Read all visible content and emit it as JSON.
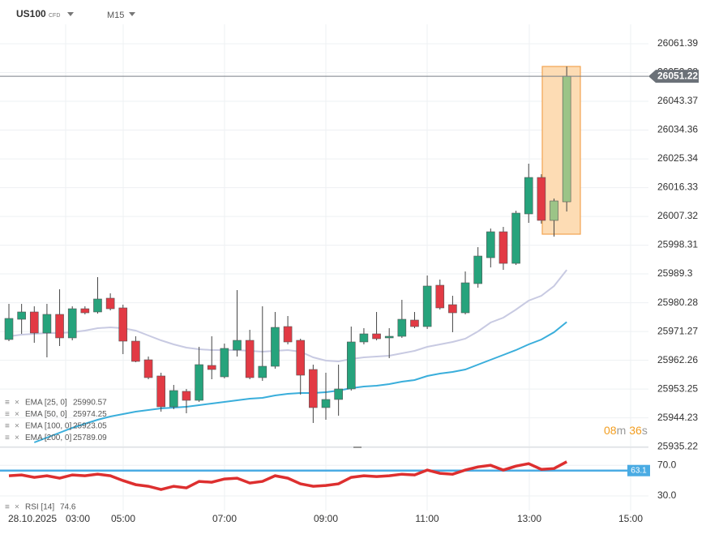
{
  "chart_data": {
    "type": "candlestick",
    "symbol": "US100",
    "instrument_type": "CFD",
    "timeframe": "M15",
    "open": [
      25968.76,
      25975.1,
      25977.39,
      25970.79,
      25976.63,
      25969.27,
      25978.4,
      25977.39,
      25981.7,
      25978.66,
      25968.25,
      25962.41,
      25957.34,
      25947.69,
      25952.52,
      25949.72,
      25960.64,
      25957.08,
      25965.46,
      25968.5,
      25956.83,
      25960.38,
      25972.82,
      25968.5,
      25959.37,
      25947.44,
      25949.98,
      25953.28,
      25968.0,
      25970.53,
      25969.27,
      25969.77,
      25974.85,
      25972.82,
      25985.76,
      25979.67,
      25977.13,
      25986.27,
      25994.39,
      26002.51,
      25992.61,
      26008.1,
      26019.52,
      26006.07,
      26011.9
    ],
    "high": [
      25979.92,
      25979.92,
      25979.16,
      25979.92,
      25984.49,
      25979.16,
      25979.16,
      25988.3,
      25983.22,
      25979.67,
      25969.77,
      25963.43,
      25958.35,
      25954.54,
      25953.28,
      25966.47,
      25969.77,
      25967.49,
      25984.24,
      25971.8,
      25979.16,
      25977.39,
      25976.12,
      25969.01,
      25960.89,
      25958.35,
      25960.89,
      25972.82,
      25972.31,
      25977.39,
      25972.31,
      25981.19,
      25977.39,
      25988.81,
      25987.54,
      25982.46,
      25990.08,
      25997.69,
      26003.53,
      26004.04,
      26009.11,
      26023.83,
      26020.53,
      26012.92,
      26054.29
    ],
    "low": [
      25968.25,
      25970.53,
      25967.74,
      25963.17,
      25966.73,
      25968.5,
      25976.63,
      25976.88,
      25977.89,
      25964.19,
      25961.65,
      25956.32,
      25946.17,
      25946.93,
      25945.66,
      25949.22,
      25956.32,
      25956.58,
      25963.43,
      25956.32,
      25955.81,
      25959.62,
      25967.24,
      25951.5,
      25942.62,
      25943.63,
      25944.9,
      25952.77,
      25967.24,
      25968.5,
      25962.92,
      25969.27,
      25972.31,
      25972.06,
      25978.15,
      25971.04,
      25976.63,
      25985.0,
      25991.35,
      25990.58,
      25992.11,
      26005.3,
      26005.05,
      26000.99,
      26008.86
    ],
    "close": [
      25975.36,
      25977.39,
      25970.79,
      25976.63,
      25969.27,
      25978.4,
      25977.13,
      25981.45,
      25978.4,
      25968.25,
      25961.91,
      25956.83,
      25947.69,
      25952.77,
      25949.72,
      25960.89,
      25959.37,
      25965.97,
      25968.5,
      25956.83,
      25960.38,
      25972.56,
      25968.0,
      25957.59,
      25947.44,
      25949.98,
      25953.28,
      25968.0,
      25970.53,
      25969.01,
      25969.77,
      25975.1,
      25972.82,
      25985.51,
      25978.66,
      25977.13,
      25986.52,
      25994.9,
      26002.51,
      25992.61,
      26008.35,
      26019.52,
      26006.07,
      26012.16,
      26051.22
    ],
    "colors": [
      "#26a37c",
      "#26a37c",
      "#e23a44",
      "#26a37c",
      "#e23a44",
      "#26a37c",
      "#e23a44",
      "#26a37c",
      "#e23a44",
      "#e23a44",
      "#e23a44",
      "#e23a44",
      "#e23a44",
      "#26a37c",
      "#e23a44",
      "#26a37c",
      "#e23a44",
      "#26a37c",
      "#26a37c",
      "#e23a44",
      "#26a37c",
      "#26a37c",
      "#e23a44",
      "#e23a44",
      "#e23a44",
      "#26a37c",
      "#26a37c",
      "#26a37c",
      "#26a37c",
      "#e23a44",
      "#26a37c",
      "#26a37c",
      "#e23a44",
      "#26a37c",
      "#e23a44",
      "#e23a44",
      "#26a37c",
      "#26a37c",
      "#26a37c",
      "#e23a44",
      "#26a37c",
      "#26a37c",
      "#e23a44",
      "#9cc487",
      "#9cc487"
    ],
    "ylim": [
      25935.0,
      26067.49
    ],
    "yticks": [
      26061.39,
      26052.38,
      26043.37,
      26034.36,
      26025.34,
      26016.33,
      26007.32,
      25998.31,
      25989.3,
      25980.28,
      25971.27,
      25962.26,
      25953.25,
      25944.23,
      25935.22
    ],
    "last_price": 26051.22,
    "indicators": [
      {
        "name": "EMA [25, 0]",
        "value": 25990.57,
        "color": "#c8cae2",
        "values": [
          25969.77,
          25970.28,
          25970.53,
          25970.79,
          25970.79,
          25971.04,
          25971.55,
          25972.31,
          25972.56,
          25972.31,
          25971.55,
          25970.03,
          25968.5,
          25967.24,
          25966.22,
          25965.71,
          25965.46,
          25965.46,
          25965.46,
          25965.2,
          25964.95,
          25965.2,
          25965.46,
          25964.95,
          25963.17,
          25962.16,
          25961.91,
          25962.67,
          25963.17,
          25963.43,
          25963.68,
          25964.44,
          25965.2,
          25966.47,
          25967.24,
          25968.0,
          25969.01,
          25971.3,
          25974.09,
          25975.61,
          25978.15,
          25980.94,
          25982.46,
          25985.51,
          25990.57
        ]
      },
      {
        "name": "EMA [50, 0]",
        "value": 25974.25,
        "color": "#3aaedb",
        "values": [
          null,
          null,
          25936.53,
          25938.05,
          25939.57,
          25941.09,
          25942.36,
          25943.63,
          25944.65,
          25945.41,
          25946.17,
          25946.68,
          25947.18,
          25947.44,
          25947.69,
          25948.2,
          25948.71,
          25949.22,
          25949.72,
          25950.23,
          25950.48,
          25951.25,
          25951.75,
          25952.01,
          25952.01,
          25952.26,
          25952.77,
          25953.53,
          25954.04,
          25954.29,
          25954.8,
          25955.56,
          25956.07,
          25957.34,
          25958.1,
          25958.61,
          25959.37,
          25960.89,
          25962.41,
          25963.94,
          25965.46,
          25967.24,
          25968.76,
          25971.04,
          25974.25
        ]
      },
      {
        "name": "EMA [100, 0]",
        "value": 25923.05
      },
      {
        "name": "EMA [200, 0]",
        "value": 25789.09
      }
    ],
    "rsi": {
      "name": "RSI [14]",
      "value": 74.6,
      "color": "#dd2f2f",
      "values": [
        56.3,
        57.4,
        54.2,
        56.3,
        53.2,
        57.4,
        56.3,
        58.4,
        56.3,
        50.0,
        44.7,
        42.6,
        38.4,
        42.6,
        40.5,
        48.9,
        47.9,
        52.1,
        53.2,
        46.8,
        48.9,
        56.3,
        53.2,
        45.8,
        42.6,
        43.7,
        45.8,
        54.2,
        56.3,
        55.3,
        56.3,
        58.4,
        57.4,
        63.7,
        59.5,
        58.4,
        63.7,
        67.9,
        70.0,
        63.7,
        68.9,
        72.1,
        64.7,
        65.8,
        74.6
      ],
      "signal": 63.1,
      "signal_color": "#4aabe3",
      "ylim": [
        11,
        85
      ],
      "yticks": [
        {
          "value": 70,
          "label": "70.0"
        },
        {
          "value": 30,
          "label": "30.0"
        }
      ]
    },
    "x_labels": [
      "28.10.2025",
      "03:00",
      "05:00",
      "07:00",
      "09:00",
      "11:00",
      "13:00",
      "15:00"
    ],
    "countdown": {
      "minutes": "08",
      "minutes_unit": "m",
      "seconds": "36",
      "seconds_unit": "s"
    },
    "grid": true
  }
}
